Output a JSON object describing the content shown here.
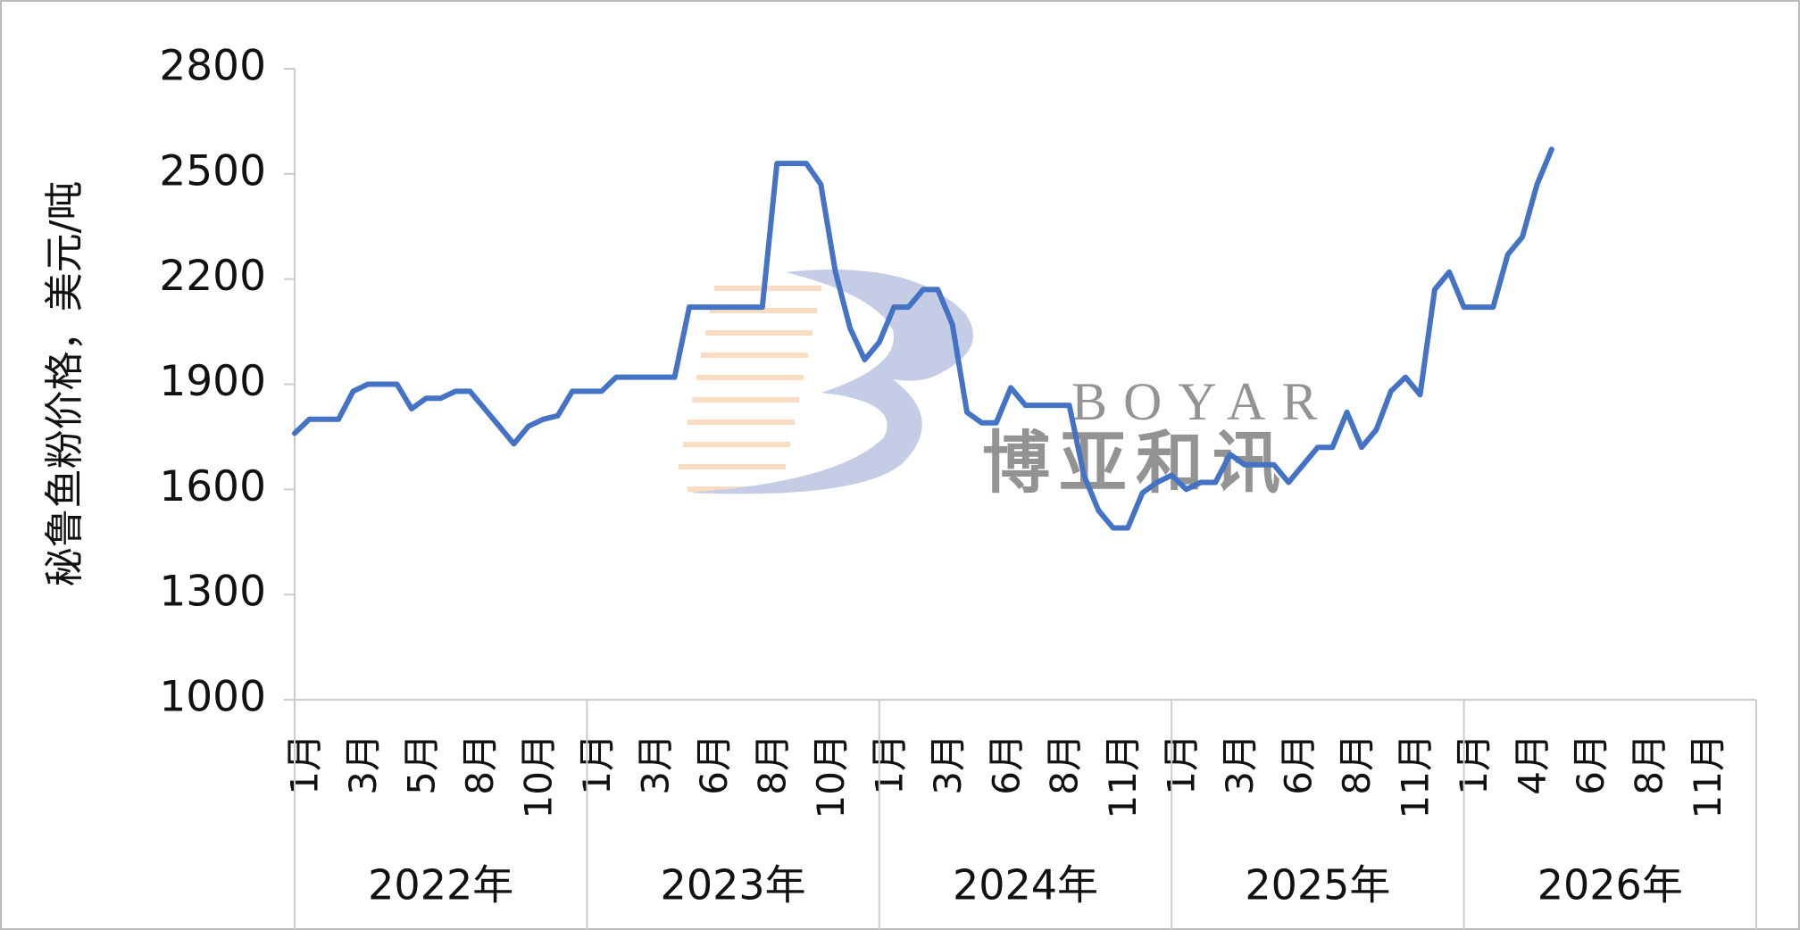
{
  "chart_data": {
    "type": "line",
    "y_label": "秘鲁鱼粉价格，美元/吨",
    "watermark": {
      "brand": "BOYAR",
      "name": "博亚和讯"
    },
    "groups": [
      "2022年",
      "2023年",
      "2024年",
      "2025年",
      "2026年"
    ],
    "categories": [
      "1月",
      null,
      null,
      null,
      "3月",
      null,
      null,
      null,
      "5月",
      null,
      null,
      null,
      "8月",
      null,
      null,
      null,
      "10月",
      null,
      null,
      null,
      "1月",
      null,
      null,
      null,
      "3月",
      null,
      null,
      null,
      "6月",
      null,
      null,
      null,
      "8月",
      null,
      null,
      null,
      "10月",
      null,
      null,
      null,
      "1月",
      null,
      null,
      null,
      "3月",
      null,
      null,
      null,
      "6月",
      null,
      null,
      null,
      "8月",
      null,
      null,
      null,
      "11月",
      null,
      null,
      null,
      "1月",
      null,
      null,
      null,
      "3月",
      null,
      null,
      null,
      "6月",
      null,
      null,
      null,
      "8月",
      null,
      null,
      null,
      "11月",
      null,
      null,
      null,
      "1月",
      null,
      null,
      null,
      "4月",
      null,
      null,
      null,
      "6月",
      null,
      null,
      null,
      "8月",
      null,
      null,
      null,
      "11月",
      null,
      null,
      null
    ],
    "values": [
      1760,
      1800,
      1800,
      1800,
      1880,
      1900,
      1900,
      1900,
      1830,
      1860,
      1860,
      1880,
      1880,
      1830,
      1780,
      1730,
      1780,
      1800,
      1810,
      1880,
      1880,
      1880,
      1920,
      1920,
      1920,
      1920,
      1920,
      2120,
      2120,
      2120,
      2120,
      2120,
      2120,
      2530,
      2530,
      2530,
      2470,
      2220,
      2060,
      1970,
      2020,
      2120,
      2120,
      2170,
      2170,
      2070,
      1820,
      1790,
      1790,
      1890,
      1840,
      1840,
      1840,
      1840,
      1640,
      1540,
      1490,
      1490,
      1590,
      1620,
      1640,
      1600,
      1620,
      1620,
      1700,
      1670,
      1670,
      1670,
      1620,
      1670,
      1720,
      1720,
      1820,
      1720,
      1770,
      1880,
      1920,
      1870,
      2170,
      2220,
      2120,
      2120,
      2120,
      2270,
      2320,
      2470,
      2570,
      null,
      null,
      null,
      null,
      null,
      null,
      null,
      null,
      null,
      null,
      null,
      null,
      null
    ],
    "color": "#4472c4",
    "ylim": [
      1000,
      2800
    ],
    "yticks": [
      1000,
      1300,
      1600,
      1900,
      2200,
      2500,
      2800
    ]
  }
}
